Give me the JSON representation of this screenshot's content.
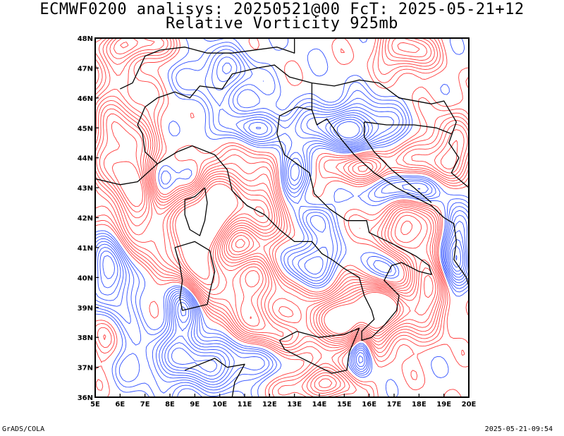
{
  "header": {
    "line1": "ECMWF0200 analisys: 20250521@00 FcT: 2025-05-21+12",
    "line2": "Relative Vorticity 925mb"
  },
  "footer": {
    "left": "GrADS/COLA",
    "right": "2025-05-21-09:54"
  },
  "map": {
    "lon_range": [
      5,
      20
    ],
    "lat_range": [
      36,
      48
    ],
    "lon_ticks": [
      "5E",
      "6E",
      "7E",
      "8E",
      "9E",
      "10E",
      "11E",
      "12E",
      "13E",
      "14E",
      "15E",
      "16E",
      "17E",
      "18E",
      "19E",
      "20E"
    ],
    "lat_ticks": [
      "36N",
      "37N",
      "38N",
      "39N",
      "40N",
      "41N",
      "42N",
      "43N",
      "44N",
      "45N",
      "46N",
      "47N",
      "48N"
    ],
    "colors": {
      "positive_contour": "#ff3b3b",
      "negative_contour": "#3050ff",
      "coastline": "#000000",
      "frame": "#000000"
    }
  }
}
